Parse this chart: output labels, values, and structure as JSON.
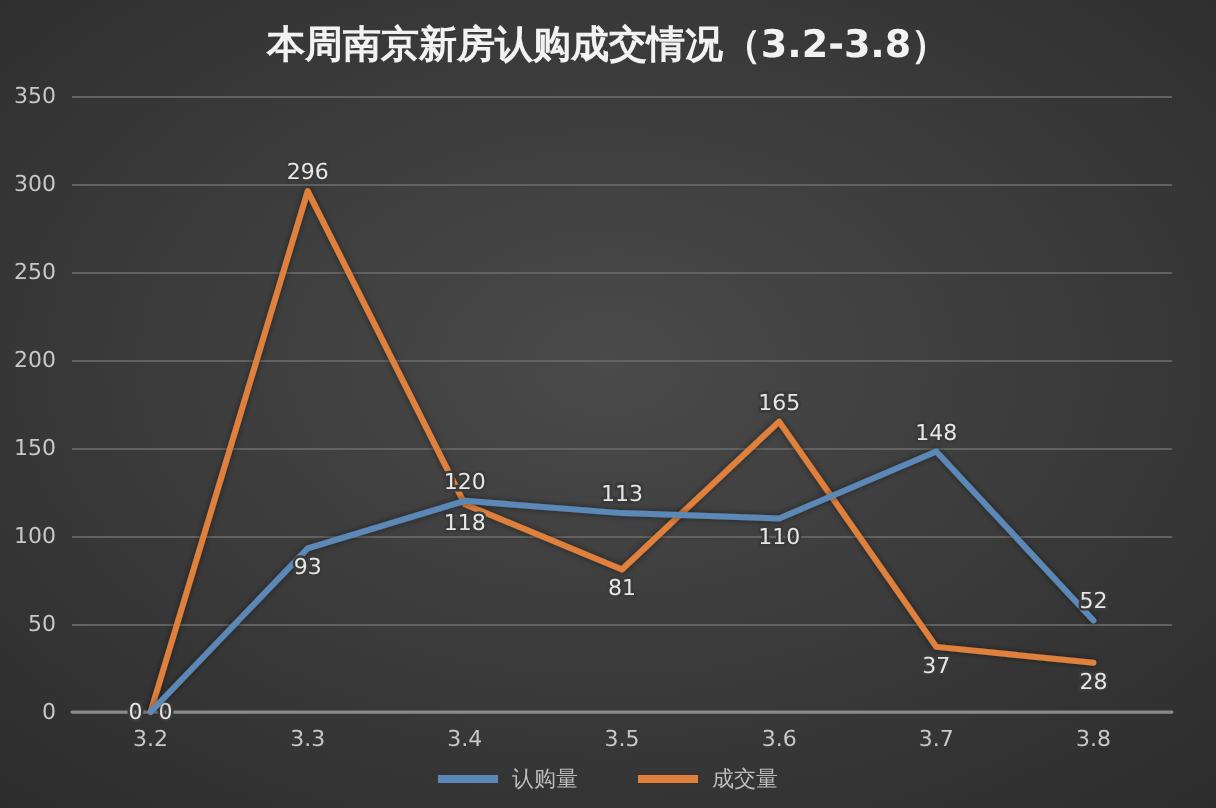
{
  "chart_data": {
    "type": "line",
    "title": "本周南京新房认购成交情况（3.2-3.8）",
    "categories": [
      "3.2",
      "3.3",
      "3.4",
      "3.5",
      "3.6",
      "3.7",
      "3.8"
    ],
    "series": [
      {
        "name": "认购量",
        "color": "#5b88b8",
        "values": [
          0,
          93,
          120,
          113,
          110,
          148,
          52
        ]
      },
      {
        "name": "成交量",
        "color": "#e0803c",
        "values": [
          0,
          296,
          118,
          81,
          165,
          37,
          28
        ]
      }
    ],
    "ylim": [
      0,
      350
    ],
    "yticks": [
      0,
      50,
      100,
      150,
      200,
      250,
      300,
      350
    ],
    "grid": "y",
    "legend": "bottom",
    "data_labels": true,
    "marker": "none"
  }
}
